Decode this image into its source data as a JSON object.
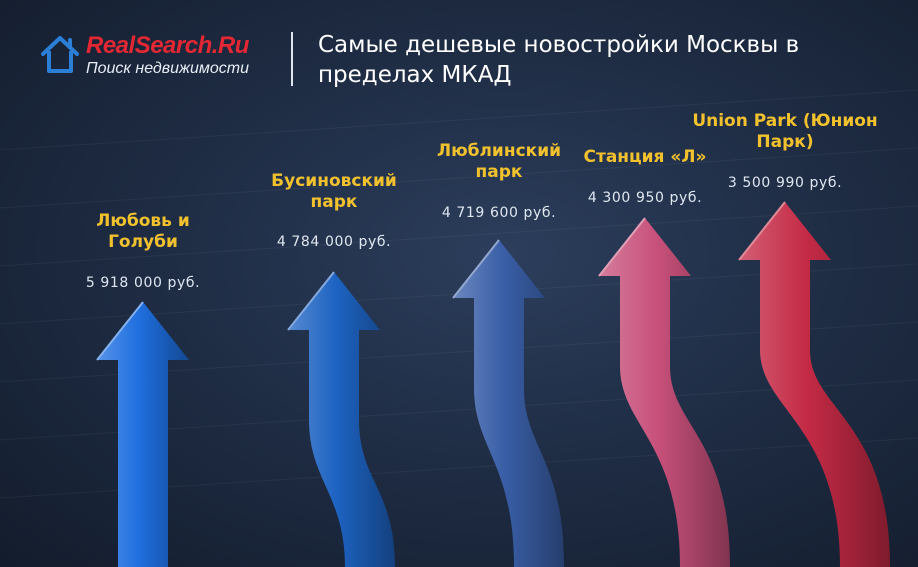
{
  "header": {
    "logo": {
      "brand": "RealSearch.Ru",
      "tagline": "Поиск недвижимости",
      "icon": "house-icon"
    },
    "title": "Самые дешевые новостройки Москвы в пределах МКАД"
  },
  "colors": {
    "background": "#1f2d45",
    "brand_red": "#e32733",
    "label_yellow": "#f2c12e",
    "value_text": "#dfe6f0"
  },
  "chart_data": {
    "type": "bar",
    "title": "Самые дешевые новостройки Москвы в пределах МКАД",
    "categories": [
      [
        "Любовь и",
        "Голуби"
      ],
      [
        "Бусиновский",
        "парк"
      ],
      [
        "Люблинский",
        "парк"
      ],
      [
        "Станция «Л»"
      ],
      [
        "Union Park (Юнион",
        "Парк)"
      ]
    ],
    "value_labels": [
      "5 918 000 руб.",
      "4 784 000 руб.",
      "4 719 600 руб.",
      "4 300 950 руб.",
      "3 500 990 руб."
    ],
    "series": [
      {
        "values": [
          5918000,
          4784000,
          4719600,
          4300950,
          3500990
        ]
      }
    ],
    "unit": "руб.",
    "mark": "arrow",
    "mark_colors": [
      "#1f6fe0",
      "#1d63c2",
      "#3a5fa8",
      "#c7507a",
      "#c42a45"
    ],
    "legend": "none",
    "grid": false
  }
}
